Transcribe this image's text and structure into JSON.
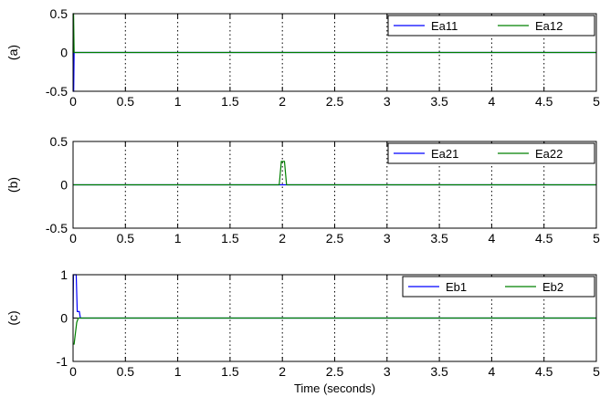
{
  "chart_data": [
    {
      "type": "line",
      "ylabel": "(a)",
      "xlabel": "",
      "xlim": [
        0,
        5
      ],
      "ylim": [
        -0.5,
        0.5
      ],
      "xticks": [
        "0",
        "0.5",
        "1",
        "1.5",
        "2",
        "2.5",
        "3",
        "3.5",
        "4",
        "4.5",
        "5"
      ],
      "yticks": [
        "0.5",
        "0",
        "-0.5"
      ],
      "grid": "vertical dotted",
      "legend": "top-right",
      "series": [
        {
          "name": "Ea11",
          "color": "#0000ff",
          "x": [
            0,
            0.003,
            0.006,
            0.01,
            0.02,
            5
          ],
          "y": [
            0,
            -0.5,
            -0.5,
            0,
            0,
            0
          ]
        },
        {
          "name": "Ea12",
          "color": "#008000",
          "x": [
            0,
            0.002,
            0.005,
            0.01,
            0.02,
            5
          ],
          "y": [
            0,
            0.5,
            0.5,
            0,
            0,
            0
          ]
        }
      ]
    },
    {
      "type": "line",
      "ylabel": "(b)",
      "xlabel": "",
      "xlim": [
        0,
        5
      ],
      "ylim": [
        -0.5,
        0.5
      ],
      "xticks": [
        "0",
        "0.5",
        "1",
        "1.5",
        "2",
        "2.5",
        "3",
        "3.5",
        "4",
        "4.5",
        "5"
      ],
      "yticks": [
        "0.5",
        "0",
        "-0.5"
      ],
      "grid": "vertical dotted",
      "legend": "top-right",
      "series": [
        {
          "name": "Ea21",
          "color": "#0000ff",
          "x": [
            0,
            0.5,
            1,
            1.5,
            2,
            2.5,
            3,
            3.5,
            4,
            4.5,
            5
          ],
          "y": [
            0,
            0,
            0,
            0,
            0,
            0,
            0,
            0,
            0,
            0,
            0
          ]
        },
        {
          "name": "Ea22",
          "color": "#008000",
          "x": [
            0,
            1.97,
            1.99,
            2.0,
            2.02,
            2.04,
            5
          ],
          "y": [
            0,
            0,
            0.27,
            0.27,
            0.27,
            0,
            0
          ]
        }
      ]
    },
    {
      "type": "line",
      "ylabel": "(c)",
      "xlabel": "Time (seconds)",
      "xlim": [
        0,
        5
      ],
      "ylim": [
        -1,
        1
      ],
      "xticks": [
        "0",
        "0.5",
        "1",
        "1.5",
        "2",
        "2.5",
        "3",
        "3.5",
        "4",
        "4.5",
        "5"
      ],
      "yticks": [
        "1",
        "0",
        "-1"
      ],
      "grid": "vertical dotted",
      "legend": "top-right",
      "series": [
        {
          "name": "Eb1",
          "color": "#0000ff",
          "x": [
            0,
            0.004,
            0.03,
            0.04,
            0.05,
            0.06,
            0.07,
            5
          ],
          "y": [
            0,
            1,
            1,
            0.15,
            0.15,
            0.15,
            0,
            0
          ]
        },
        {
          "name": "Eb2",
          "color": "#008000",
          "x": [
            0,
            0.01,
            0.02,
            0.035,
            0.05,
            0.06,
            5
          ],
          "y": [
            -0.6,
            -0.6,
            -0.4,
            -0.1,
            0,
            0,
            0
          ]
        }
      ]
    }
  ]
}
